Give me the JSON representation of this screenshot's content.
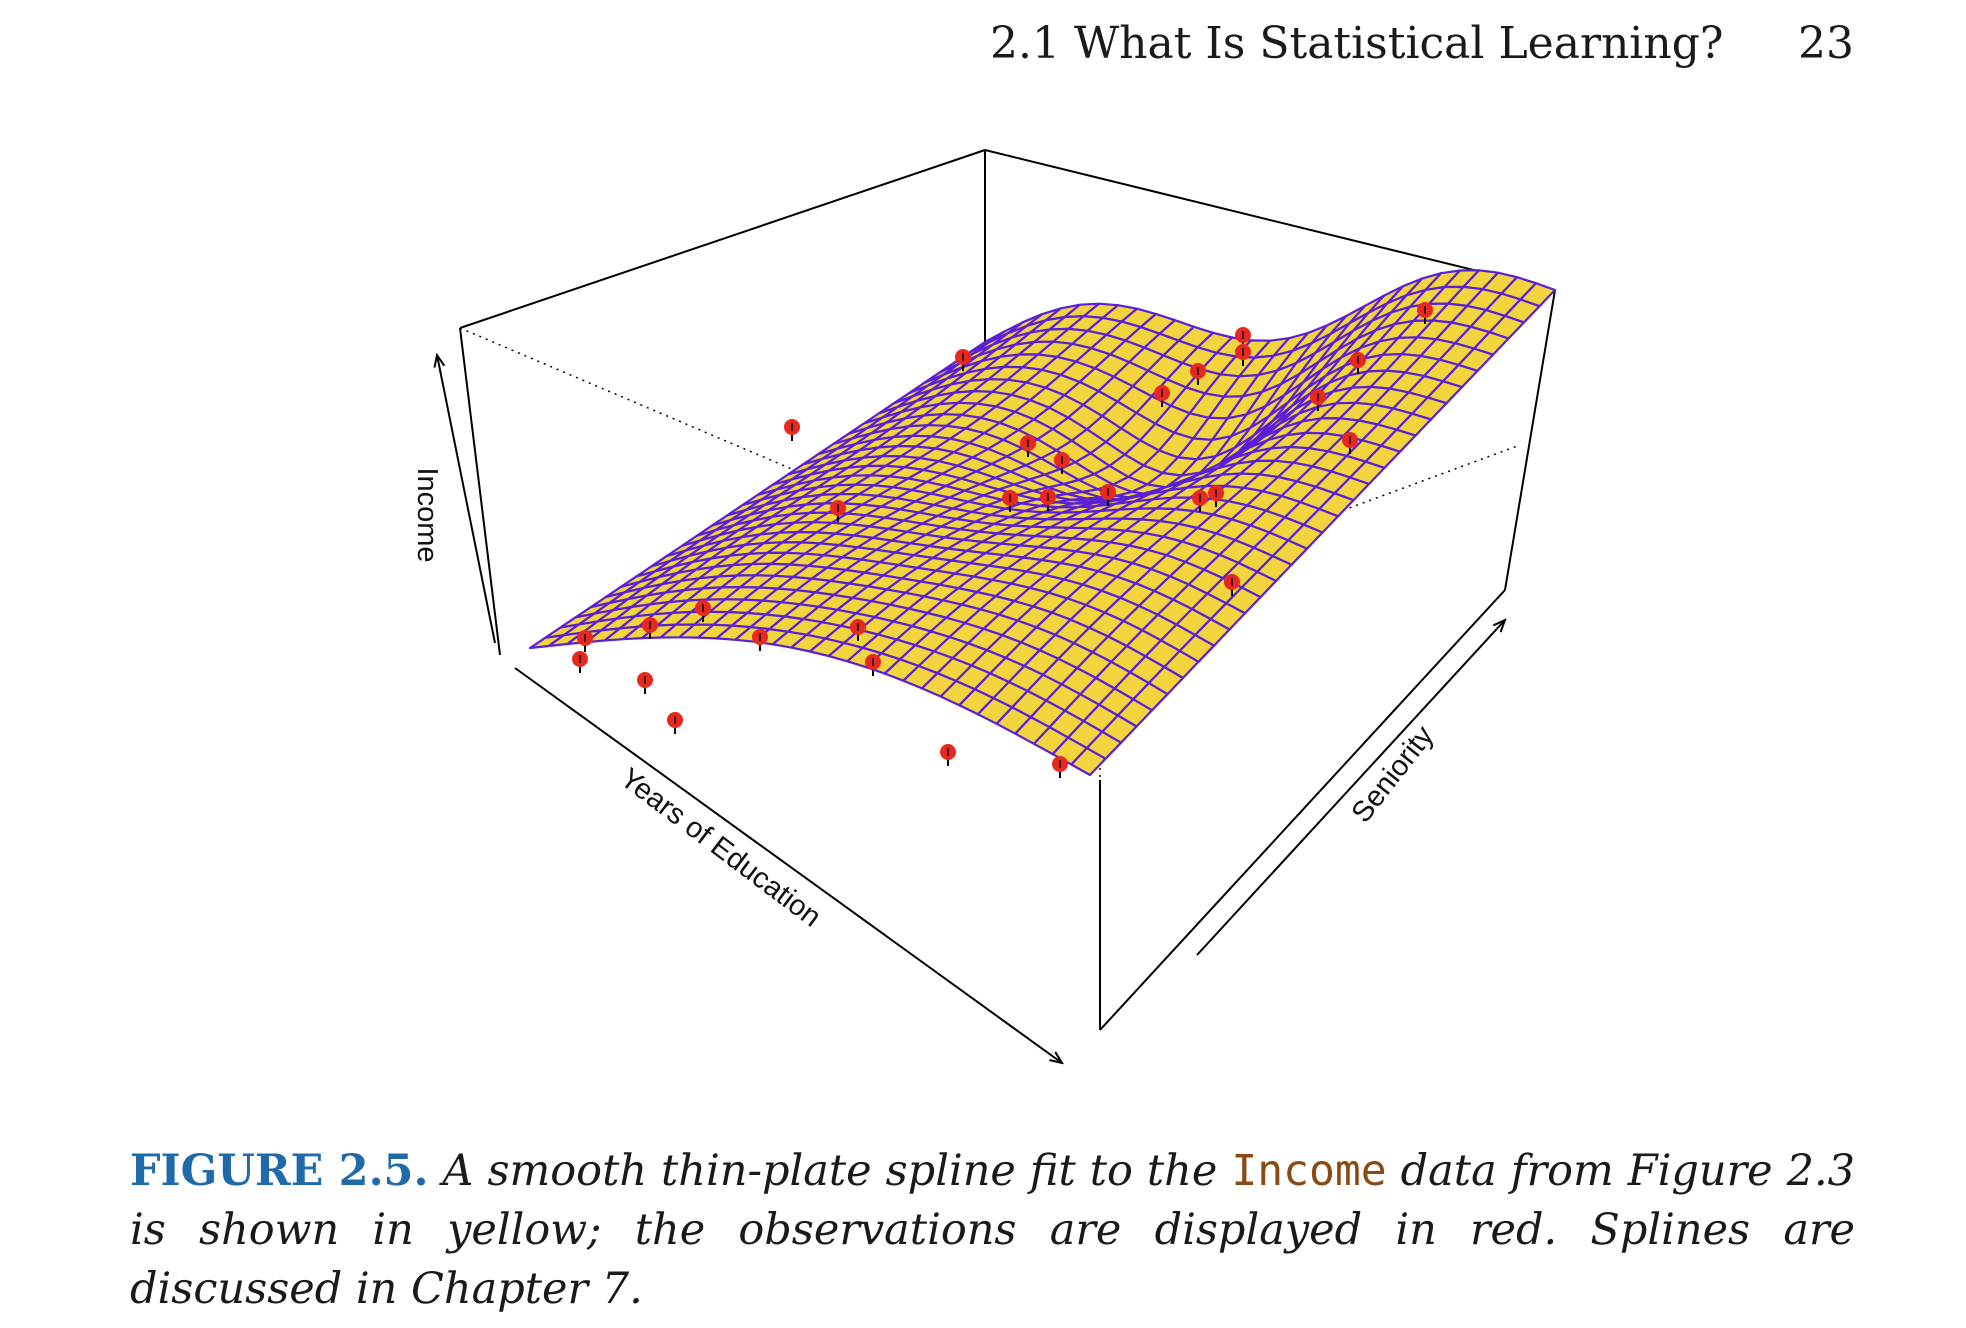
{
  "header": {
    "section_title": "2.1 What Is Statistical Learning?",
    "page_number": "23"
  },
  "figure": {
    "axes": {
      "z_label": "Income",
      "x_label": "Years of Education",
      "y_label": "Seniority"
    },
    "colors": {
      "surface_fill": "#f2d43e",
      "surface_mesh": "#5a1fd6",
      "observations": "#e8281e",
      "box_lines": "#000000"
    }
  },
  "caption": {
    "label": "FIGURE 2.5.",
    "text_before": " A smooth thin-plate spline fit to the ",
    "code": "Income",
    "text_after": " data from Figure 2.3 is shown in yellow; the observations are displayed in red. Splines are discussed in Chapter 7."
  },
  "chart_data": {
    "type": "surface3d",
    "title": "",
    "xlabel": "Years of Education",
    "ylabel": "Seniority",
    "zlabel": "Income",
    "surface": "smooth thin-plate spline fit",
    "observations_shown": 30
  }
}
